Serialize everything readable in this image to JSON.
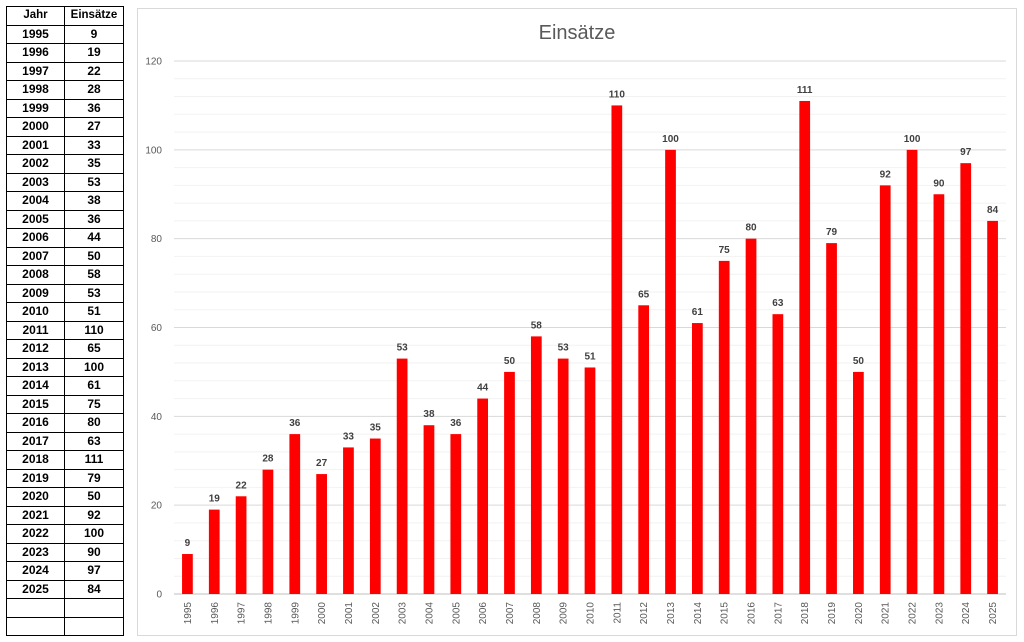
{
  "table": {
    "headers": [
      "Jahr",
      "Einsätze"
    ],
    "rows": [
      [
        "1995",
        "9"
      ],
      [
        "1996",
        "19"
      ],
      [
        "1997",
        "22"
      ],
      [
        "1998",
        "28"
      ],
      [
        "1999",
        "36"
      ],
      [
        "2000",
        "27"
      ],
      [
        "2001",
        "33"
      ],
      [
        "2002",
        "35"
      ],
      [
        "2003",
        "53"
      ],
      [
        "2004",
        "38"
      ],
      [
        "2005",
        "36"
      ],
      [
        "2006",
        "44"
      ],
      [
        "2007",
        "50"
      ],
      [
        "2008",
        "58"
      ],
      [
        "2009",
        "53"
      ],
      [
        "2010",
        "51"
      ],
      [
        "2011",
        "110"
      ],
      [
        "2012",
        "65"
      ],
      [
        "2013",
        "100"
      ],
      [
        "2014",
        "61"
      ],
      [
        "2015",
        "75"
      ],
      [
        "2016",
        "80"
      ],
      [
        "2017",
        "63"
      ],
      [
        "2018",
        "111"
      ],
      [
        "2019",
        "79"
      ],
      [
        "2020",
        "50"
      ],
      [
        "2021",
        "92"
      ],
      [
        "2022",
        "100"
      ],
      [
        "2023",
        "90"
      ],
      [
        "2024",
        "97"
      ],
      [
        "2025",
        "84"
      ]
    ],
    "empty_rows": 2
  },
  "chart_data": {
    "type": "bar",
    "title": "Einsätze",
    "xlabel": "",
    "ylabel": "",
    "categories": [
      "1995",
      "1996",
      "1997",
      "1998",
      "1999",
      "2000",
      "2001",
      "2002",
      "2003",
      "2004",
      "2005",
      "2006",
      "2007",
      "2008",
      "2009",
      "2010",
      "2011",
      "2012",
      "2013",
      "2014",
      "2015",
      "2016",
      "2017",
      "2018",
      "2019",
      "2020",
      "2021",
      "2022",
      "2023",
      "2024",
      "2025"
    ],
    "values": [
      9,
      19,
      22,
      28,
      36,
      27,
      33,
      35,
      53,
      38,
      36,
      44,
      50,
      58,
      53,
      51,
      110,
      65,
      100,
      61,
      75,
      80,
      63,
      111,
      79,
      50,
      92,
      100,
      90,
      97,
      84
    ],
    "ylim": [
      0,
      120
    ],
    "yticks": [
      0,
      20,
      40,
      60,
      80,
      100,
      120
    ],
    "grid": true,
    "minor_grid": true,
    "data_labels": true,
    "legend": "none",
    "bar_color": "#ff0000"
  }
}
